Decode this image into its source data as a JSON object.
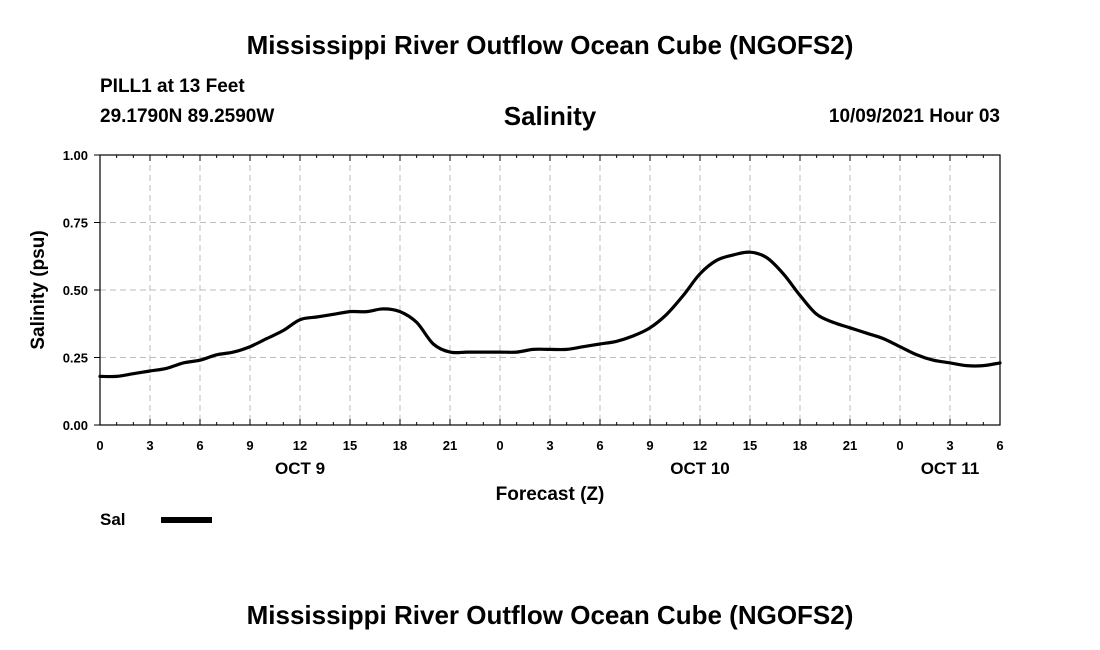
{
  "header": {
    "title": "Mississippi River Outflow Ocean Cube (NGOFS2)",
    "station": "PILL1 at 13 Feet",
    "coords": "29.1790N  89.2590W",
    "variable": "Salinity",
    "run": "10/09/2021 Hour 03"
  },
  "footer": {
    "title": "Mississippi River Outflow Ocean Cube (NGOFS2)"
  },
  "legend": {
    "label": "Sal"
  },
  "chart_data": {
    "type": "line",
    "title": "Salinity",
    "xlabel": "Forecast (Z)",
    "ylabel": "Salinity (psu)",
    "ylim": [
      0,
      1
    ],
    "xlim": [
      0,
      54
    ],
    "x_unit": "hours from Oct 9 00Z",
    "grid": true,
    "y_ticks": [
      0.0,
      0.25,
      0.5,
      0.75,
      1.0
    ],
    "y_tick_labels": [
      "0.00",
      "0.25",
      "0.50",
      "0.75",
      "1.00"
    ],
    "x_ticks": [
      0,
      3,
      6,
      9,
      12,
      15,
      18,
      21,
      24,
      27,
      30,
      33,
      36,
      39,
      42,
      45,
      48,
      51,
      54
    ],
    "x_tick_labels": [
      "0",
      "3",
      "6",
      "9",
      "12",
      "15",
      "18",
      "21",
      "0",
      "3",
      "6",
      "9",
      "12",
      "15",
      "18",
      "21",
      "0",
      "3",
      "6"
    ],
    "day_labels": [
      {
        "x": 12,
        "label": "OCT 9"
      },
      {
        "x": 36,
        "label": "OCT 10"
      },
      {
        "x": 51,
        "label": "OCT 11"
      }
    ],
    "series": [
      {
        "name": "Sal",
        "color": "#000000",
        "x": [
          0,
          1,
          2,
          3,
          4,
          5,
          6,
          7,
          8,
          9,
          10,
          11,
          12,
          13,
          14,
          15,
          16,
          17,
          18,
          19,
          20,
          21,
          22,
          23,
          24,
          25,
          26,
          27,
          28,
          29,
          30,
          31,
          32,
          33,
          34,
          35,
          36,
          37,
          38,
          39,
          40,
          41,
          42,
          43,
          44,
          45,
          46,
          47,
          48,
          49,
          50,
          51,
          52,
          53,
          54
        ],
        "values": [
          0.18,
          0.18,
          0.19,
          0.2,
          0.21,
          0.23,
          0.24,
          0.26,
          0.27,
          0.29,
          0.32,
          0.35,
          0.39,
          0.4,
          0.41,
          0.42,
          0.42,
          0.43,
          0.42,
          0.38,
          0.3,
          0.27,
          0.27,
          0.27,
          0.27,
          0.27,
          0.28,
          0.28,
          0.28,
          0.29,
          0.3,
          0.31,
          0.33,
          0.36,
          0.41,
          0.48,
          0.56,
          0.61,
          0.63,
          0.64,
          0.62,
          0.56,
          0.48,
          0.41,
          0.38,
          0.36,
          0.34,
          0.32,
          0.29,
          0.26,
          0.24,
          0.23,
          0.22,
          0.22,
          0.23
        ]
      }
    ]
  }
}
